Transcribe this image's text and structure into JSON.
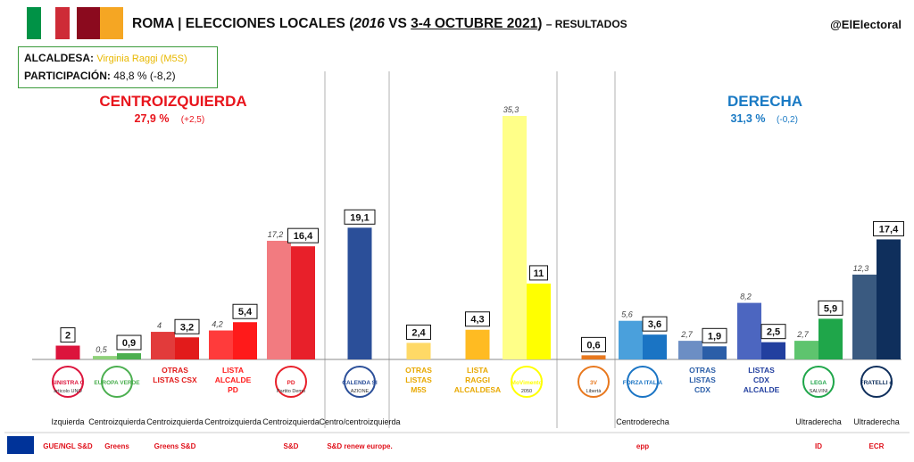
{
  "header": {
    "title_city": "ROMA",
    "title_sep": "|",
    "title_main": "ELECCIONES LOCALES",
    "title_year_prev": "2016",
    "title_vs": "VS",
    "title_date": "3-4 OCTUBRE 2021",
    "title_suffix": "– RESULTADOS",
    "brand": "@ElElectoral"
  },
  "info": {
    "mayor_label": "ALCALDESA:",
    "mayor_value": "Virginia Raggi (M5S)",
    "turnout_label": "PARTICIPACIÓN:",
    "turnout_value": "48,8 % (-8,2)"
  },
  "colors": {
    "flag_green": "#009246",
    "flag_white": "#ffffff",
    "flag_red": "#ce2b37",
    "rome_maroon": "#8b0a1e",
    "rome_gold": "#f5a623",
    "left_title": "#e8141c",
    "right_title": "#1a7ac4"
  },
  "chart_data": {
    "type": "bar",
    "series": [
      {
        "name": "2016"
      },
      {
        "name": "2021"
      }
    ],
    "blocs": [
      {
        "name": "CENTROIZQUIERDA",
        "value": "27,9 %",
        "change": "(+2,5)",
        "color": "#e8141c"
      },
      {
        "name": "DERECHA",
        "value": "31,3 %",
        "change": "(-0,2)",
        "color": "#1a7ac4"
      }
    ],
    "parties": [
      {
        "label": "",
        "logo": "sinistra-civica-ecologista-logo",
        "logo_text": "SINISTRA CIVICA ECOLOGISTA",
        "logo_text2": "articolo UNO",
        "family": "Izquierda",
        "eu_group": "GUE/NGL S&D",
        "v2016": null,
        "v2021": 2,
        "label2016": "",
        "label2021": "2",
        "c2016": "#f08080",
        "c2021": "#dc143c"
      },
      {
        "label": "",
        "logo": "europa-verde-logo",
        "logo_text": "EUROPA VERDE",
        "logo_text2": "",
        "family": "Centroizquierda",
        "eu_group": "Greens",
        "v2016": 0.5,
        "v2021": 0.9,
        "label2016": "0,5",
        "label2021": "0,9",
        "c2016": "#8fd17a",
        "c2021": "#4caf50"
      },
      {
        "label": "OTRAS LISTAS CSX",
        "logo": "",
        "logo_text": "",
        "logo_text2": "",
        "family": "Centroizquierda",
        "eu_group": "Greens S&D",
        "v2016": 4,
        "v2021": 3.2,
        "label2016": "4",
        "label2021": "3,2",
        "c2016": "#e23b3b",
        "c2021": "#e21b1b"
      },
      {
        "label": "LISTA ALCALDE PD",
        "logo": "",
        "logo_text": "",
        "logo_text2": "",
        "family": "Centroizquierda",
        "eu_group": "",
        "v2016": 4.2,
        "v2021": 5.4,
        "label2016": "4,2",
        "label2021": "5,4",
        "c2016": "#ff3b3b",
        "c2021": "#ff1a1a"
      },
      {
        "label": "",
        "logo": "pd-logo",
        "logo_text": "PD",
        "logo_text2": "Partito Democratico",
        "family": "Centroizquierda",
        "eu_group": "S&D",
        "v2016": 17.2,
        "v2021": 16.4,
        "label2016": "17,2",
        "label2021": "16,4",
        "c2016": "#f27b80",
        "c2021": "#e8202a"
      },
      {
        "label": "",
        "logo": "calenda-sindaco-logo",
        "logo_text": "CALENDA SINDACO",
        "logo_text2": "AZIONE",
        "family": "Centro/centroizquierda",
        "eu_group": "S&D renew europe.",
        "v2016": null,
        "v2021": 19.1,
        "label2016": "",
        "label2021": "19,1",
        "c2016": "#5b7fc4",
        "c2021": "#2b4f99"
      },
      {
        "label": "OTRAS LISTAS M5S",
        "logo": "",
        "logo_text": "",
        "logo_text2": "",
        "family": "",
        "eu_group": "",
        "v2016": null,
        "v2021": 2.4,
        "label2016": "",
        "label2021": "2,4",
        "c2016": "#ffe08a",
        "c2021": "#ffd966"
      },
      {
        "label": "LISTA RAGGI ALCALDESA",
        "logo": "",
        "logo_text": "",
        "logo_text2": "",
        "family": "",
        "eu_group": "",
        "v2016": null,
        "v2021": 4.3,
        "label2016": "",
        "label2021": "4,3",
        "c2016": "#ffcc66",
        "c2021": "#ffbb22"
      },
      {
        "label": "",
        "logo": "movimento-5-stelle-logo",
        "logo_text": "MoVimento",
        "logo_text2": "2050",
        "family": "",
        "eu_group": "",
        "v2016": 35.3,
        "v2021": 11,
        "label2016": "35,3",
        "label2021": "11",
        "c2016": "#ffff88",
        "c2021": "#ffff00"
      },
      {
        "label": "",
        "logo": "3v-logo",
        "logo_text": "3V",
        "logo_text2": "Libertà",
        "family": "",
        "eu_group": "",
        "v2016": null,
        "v2021": 0.6,
        "label2016": "",
        "label2021": "0,6",
        "c2016": "#f5a070",
        "c2021": "#e8781e"
      },
      {
        "label": "",
        "logo": "italia-forza-italia-logo",
        "logo_text": "FORZA ITALIA",
        "logo_text2": "",
        "family": "Centroderecha",
        "eu_group": "epp",
        "v2016": 5.6,
        "v2021": 3.6,
        "label2016": "5,6",
        "label2021": "3,6",
        "c2016": "#4aa0dc",
        "c2021": "#1a74c4"
      },
      {
        "label": "OTRAS LISTAS CDX",
        "logo": "",
        "logo_text": "",
        "logo_text2": "",
        "family": "",
        "eu_group": "",
        "v2016": 2.7,
        "v2021": 1.9,
        "label2016": "2,7",
        "label2021": "1,9",
        "c2016": "#6c8ec4",
        "c2021": "#2b5ea8"
      },
      {
        "label": "LISTAS CDX ALCALDE",
        "logo": "",
        "logo_text": "",
        "logo_text2": "",
        "family": "",
        "eu_group": "",
        "v2016": 8.2,
        "v2021": 2.5,
        "label2016": "8,2",
        "label2021": "2,5",
        "c2016": "#4c66c0",
        "c2021": "#223f9f"
      },
      {
        "label": "",
        "logo": "lega-salvini-logo",
        "logo_text": "LEGA",
        "logo_text2": "SALVINI",
        "family": "Ultraderecha",
        "eu_group": "ID",
        "v2016": 2.7,
        "v2021": 5.9,
        "label2016": "2,7",
        "label2021": "5,9",
        "c2016": "#5ec46e",
        "c2021": "#1fa64a"
      },
      {
        "label": "",
        "logo": "fratelli-ditalia-logo",
        "logo_text": "FRATELLI d'ITALIA",
        "logo_text2": "",
        "family": "Ultraderecha",
        "eu_group": "ECR",
        "v2016": 12.3,
        "v2021": 17.4,
        "label2016": "12,3",
        "label2021": "17,4",
        "c2016": "#3a5a80",
        "c2021": "#0f2f5c"
      }
    ],
    "family_labels": [
      {
        "text": "Izquierda",
        "group": 0
      },
      {
        "text": "Centroizquierda",
        "group": 1
      },
      {
        "text": "Centroizquierda",
        "group": 2
      },
      {
        "text": "Centroizquierda",
        "group": 3
      },
      {
        "text": "Centroizquierda",
        "group": 4
      },
      {
        "text": "Centro/centroizquierda",
        "group": 5
      },
      {
        "text": "Centroderecha",
        "group": 10
      },
      {
        "text": "Ultraderecha",
        "group": 13
      },
      {
        "text": "Ultraderecha",
        "group": 14
      }
    ],
    "ylim": [
      0,
      35.3
    ]
  }
}
